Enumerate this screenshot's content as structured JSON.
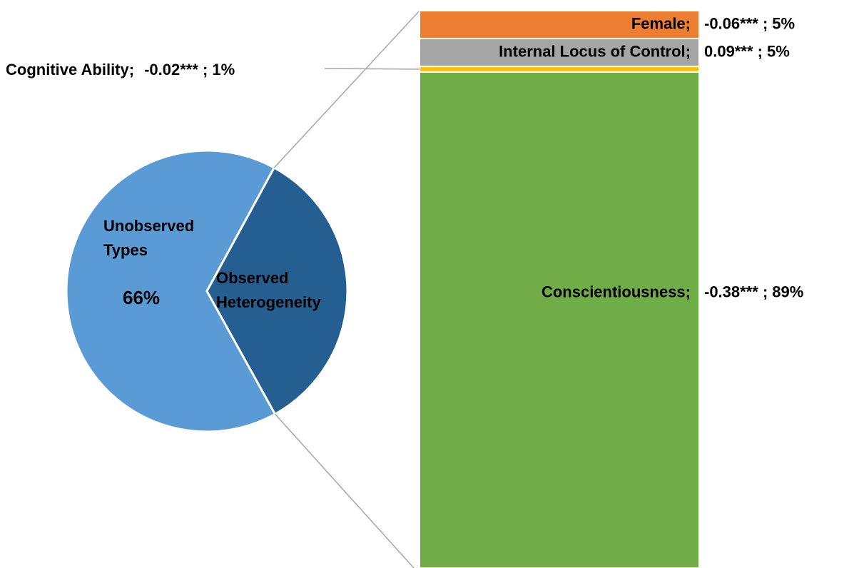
{
  "chart_data": {
    "type": "pie-of-bar",
    "pie": {
      "categories": [
        "Unobserved Types",
        "Observed Heterogeneity"
      ],
      "values": [
        66,
        34
      ],
      "value_labels": [
        "66%",
        null
      ],
      "colors": [
        "#5b9bd5",
        "#255e91"
      ]
    },
    "bar": {
      "categories": [
        "Female;",
        "Internal Locus of Control;",
        "Cognitive Ability;",
        "Conscientiousness;"
      ],
      "coefficients": [
        "-0.06*** ;",
        "0.09*** ;",
        "-0.02*** ;",
        "-0.38*** ;"
      ],
      "values": [
        5,
        5,
        1,
        89
      ],
      "value_labels": [
        "5%",
        "5%",
        "1%",
        "89%"
      ],
      "colors": [
        "#ed7d31",
        "#a5a5a5",
        "#ffc000",
        "#70ad47"
      ]
    }
  }
}
